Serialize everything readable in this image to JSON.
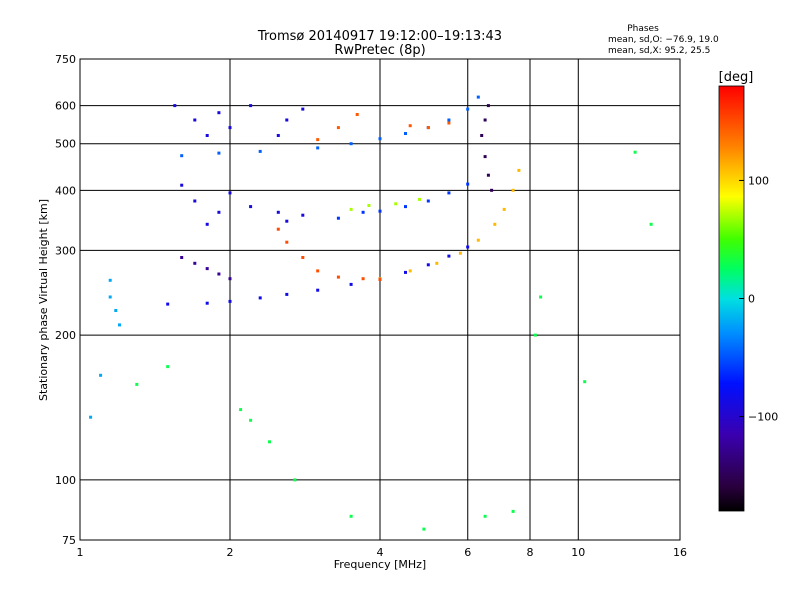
{
  "header": {
    "title": "Tromsø 20140917 19:12:00–19:13:43",
    "subtitle": "RwPretec (8p)"
  },
  "stats": {
    "heading": "Phases",
    "line_o": "mean, sd,O: −76.9, 19.0",
    "line_x": "mean, sd,X:  95.2, 25.5"
  },
  "colorbar": {
    "label": "[deg]",
    "ticks": [
      {
        "value": 100,
        "label": "100"
      },
      {
        "value": 0,
        "label": "0"
      },
      {
        "value": -100,
        "label": "−100"
      }
    ],
    "range": [
      -180,
      180
    ]
  },
  "chart_data": {
    "type": "scatter",
    "xlabel": "Frequency [MHz]",
    "ylabel": "Stationary phase Virtual Height [km]",
    "x_scale": "log",
    "y_scale": "log",
    "xlim": [
      1,
      16
    ],
    "ylim": [
      75,
      750
    ],
    "x_ticks": [
      {
        "value": 1,
        "label": "1"
      },
      {
        "value": 2,
        "label": "2"
      },
      {
        "value": 4,
        "label": "4"
      },
      {
        "value": 6,
        "label": "6"
      },
      {
        "value": 8,
        "label": "8"
      },
      {
        "value": 10,
        "label": "10"
      },
      {
        "value": 16,
        "label": "16"
      }
    ],
    "y_ticks": [
      {
        "value": 75,
        "label": "75"
      },
      {
        "value": 100,
        "label": "100"
      },
      {
        "value": 200,
        "label": "200"
      },
      {
        "value": 300,
        "label": "300"
      },
      {
        "value": 400,
        "label": "400"
      },
      {
        "value": 500,
        "label": "500"
      },
      {
        "value": 600,
        "label": "600"
      },
      {
        "value": 750,
        "label": "750"
      }
    ],
    "grid": true,
    "color_by": "phase",
    "series": [
      {
        "points": [
          [
            1.5,
            232
          ],
          [
            1.8,
            233
          ],
          [
            2.0,
            235
          ],
          [
            2.3,
            239
          ],
          [
            2.6,
            243
          ],
          [
            3.0,
            248
          ],
          [
            3.5,
            255
          ],
          [
            4.0,
            262
          ],
          [
            4.5,
            270
          ],
          [
            5.0,
            280
          ],
          [
            5.5,
            292
          ],
          [
            6.0,
            305
          ]
        ],
        "phase": -85
      },
      {
        "points": [
          [
            4.0,
            262
          ],
          [
            4.6,
            272
          ],
          [
            5.2,
            282
          ],
          [
            5.8,
            296
          ],
          [
            6.3,
            315
          ],
          [
            6.8,
            340
          ],
          [
            7.1,
            365
          ],
          [
            7.4,
            400
          ],
          [
            7.6,
            440
          ]
        ],
        "phase": 110
      },
      {
        "points": [
          [
            2.5,
            332
          ],
          [
            2.6,
            312
          ],
          [
            2.8,
            290
          ],
          [
            3.0,
            272
          ],
          [
            3.3,
            264
          ],
          [
            3.7,
            262
          ],
          [
            4.0,
            261
          ]
        ],
        "phase": 150
      },
      {
        "points": [
          [
            1.6,
            472
          ],
          [
            1.9,
            478
          ],
          [
            2.3,
            482
          ],
          [
            3.0,
            490
          ],
          [
            3.5,
            500
          ],
          [
            4.0,
            512
          ],
          [
            4.5,
            525
          ],
          [
            5.0,
            540
          ],
          [
            5.5,
            560
          ],
          [
            6.0,
            590
          ],
          [
            6.3,
            625
          ]
        ],
        "phase": -45
      },
      {
        "points": [
          [
            3.3,
            350
          ],
          [
            3.7,
            360
          ],
          [
            4.0,
            362
          ],
          [
            4.5,
            370
          ],
          [
            5.0,
            380
          ],
          [
            5.5,
            395
          ],
          [
            6.0,
            412
          ]
        ],
        "phase": -60
      },
      {
        "points": [
          [
            1.55,
            600
          ],
          [
            1.7,
            560
          ],
          [
            1.8,
            520
          ],
          [
            1.9,
            580
          ],
          [
            2.0,
            540
          ],
          [
            2.2,
            600
          ],
          [
            2.5,
            520
          ],
          [
            2.6,
            560
          ],
          [
            2.8,
            590
          ],
          [
            1.6,
            410
          ],
          [
            1.7,
            380
          ],
          [
            1.8,
            340
          ],
          [
            1.9,
            360
          ],
          [
            2.0,
            395
          ],
          [
            2.2,
            370
          ],
          [
            2.5,
            360
          ],
          [
            2.6,
            345
          ],
          [
            2.8,
            355
          ]
        ],
        "phase": -90
      },
      {
        "points": [
          [
            1.6,
            290
          ],
          [
            1.7,
            282
          ],
          [
            1.8,
            275
          ],
          [
            1.9,
            268
          ],
          [
            2.0,
            262
          ]
        ],
        "phase": -125
      },
      {
        "points": [
          [
            6.4,
            520
          ],
          [
            6.5,
            470
          ],
          [
            6.6,
            430
          ],
          [
            6.7,
            400
          ],
          [
            6.5,
            560
          ],
          [
            6.6,
            600
          ]
        ],
        "phase": -150
      },
      {
        "points": [
          [
            1.15,
            260
          ],
          [
            1.15,
            240
          ],
          [
            1.18,
            225
          ],
          [
            1.2,
            210
          ],
          [
            1.1,
            165
          ],
          [
            1.05,
            135
          ]
        ],
        "phase": -20
      },
      {
        "points": [
          [
            3.0,
            510
          ],
          [
            3.3,
            540
          ],
          [
            3.6,
            575
          ],
          [
            4.6,
            545
          ],
          [
            5.0,
            540
          ],
          [
            5.5,
            552
          ]
        ],
        "phase": 145
      },
      {
        "points": [
          [
            3.5,
            365
          ],
          [
            3.8,
            372
          ],
          [
            4.3,
            375
          ],
          [
            4.8,
            383
          ]
        ],
        "phase": 70
      },
      {
        "points": [
          [
            1.3,
            158
          ],
          [
            1.5,
            172
          ],
          [
            2.1,
            140
          ],
          [
            2.2,
            133
          ],
          [
            2.4,
            120
          ],
          [
            2.7,
            100
          ],
          [
            3.5,
            84
          ],
          [
            4.9,
            79
          ],
          [
            6.5,
            84
          ],
          [
            7.4,
            86
          ],
          [
            10.3,
            160
          ],
          [
            13.0,
            480
          ],
          [
            14.0,
            340
          ],
          [
            8.2,
            200
          ],
          [
            8.4,
            240
          ]
        ],
        "phase": 30
      }
    ]
  }
}
